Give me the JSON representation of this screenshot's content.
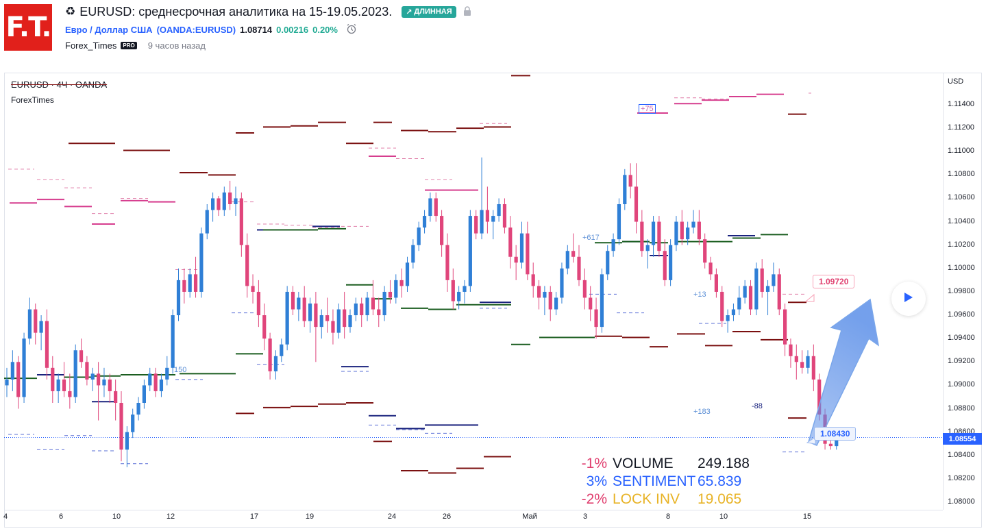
{
  "header": {
    "logo_text": "F.T.",
    "title_icon": "♻",
    "title": "EURUSD: среднесрочная аналитика на 15-19.05.2023.",
    "direction_badge": "ДЛИННАЯ",
    "direction_icon": "↗",
    "symbol_name": "Евро / Доллар США",
    "symbol_ticker": "(OANDA:EURUSD)",
    "price": "1.08714",
    "change": "0.00216",
    "change_pct": "0.20%",
    "author": "Forex_Times",
    "author_badge": "PRO",
    "time_ago": "9 часов назад",
    "colors": {
      "accent": "#2962ff",
      "positive": "#22ab94",
      "logo": "#e1201b"
    }
  },
  "chart": {
    "symbol_label": "EURUSD · 4Ч · OANDA",
    "indicator_label": "ForexTimes",
    "currency": "USD",
    "last_price": "1.08554",
    "target_callout": "1.09720",
    "current_callout": "1.08430",
    "notes": {
      "n1": "+75",
      "n2": "+617",
      "n3": "+13",
      "n4": "+183",
      "n5": "-88",
      "n6": "150"
    },
    "play_icon": "play-icon"
  },
  "stats": [
    {
      "pct": "-1%",
      "name": "VOLUME",
      "value": "249.188",
      "color": "#131722",
      "pct_color": "#e03f6f"
    },
    {
      "pct": "3%",
      "name": "SENTIMENT",
      "value": "65.839",
      "color": "#2962ff",
      "pct_color": "#2962ff"
    },
    {
      "pct": "-2%",
      "name": "LOCK INV",
      "value": "19.065",
      "color": "#e8b326",
      "pct_color": "#e03f6f"
    }
  ],
  "chart_data": {
    "type": "candlestick",
    "y_axis_ticks": [
      "1.11400",
      "1.11200",
      "1.11000",
      "1.10800",
      "1.10600",
      "1.10400",
      "1.10200",
      "1.10000",
      "1.09800",
      "1.09600",
      "1.09400",
      "1.09200",
      "1.09000",
      "1.08800",
      "1.08600",
      "1.08400",
      "1.08200",
      "1.08000"
    ],
    "x_axis_ticks": [
      "4",
      "6",
      "10",
      "12",
      "17",
      "19",
      "24",
      "26",
      "Май",
      "3",
      "8",
      "10",
      "15"
    ],
    "ylim": [
      1.0796,
      1.1166
    ],
    "series": [
      {
        "values": [
          [
            1.09,
            1.0915,
            1.089,
            1.0905
          ],
          [
            1.0905,
            1.093,
            1.0895,
            1.092
          ],
          [
            1.092,
            1.0925,
            1.088,
            1.089
          ],
          [
            1.089,
            1.0945,
            1.0885,
            1.094
          ],
          [
            1.094,
            1.0975,
            1.0935,
            1.0965
          ],
          [
            1.0965,
            1.097,
            1.0935,
            1.0945
          ],
          [
            1.0945,
            1.096,
            1.093,
            1.0955
          ],
          [
            1.0955,
            1.0965,
            1.0905,
            1.0915
          ],
          [
            1.0915,
            1.0925,
            1.0885,
            1.0895
          ],
          [
            1.0895,
            1.091,
            1.0885,
            1.0905
          ],
          [
            1.0905,
            1.092,
            1.089,
            1.0895
          ],
          [
            1.0895,
            1.091,
            1.088,
            1.089
          ],
          [
            1.089,
            1.0935,
            1.0885,
            1.093
          ],
          [
            1.093,
            1.094,
            1.0915,
            1.092
          ],
          [
            1.092,
            1.0925,
            1.09,
            1.0905
          ],
          [
            1.0905,
            1.0915,
            1.0895,
            1.091
          ],
          [
            1.091,
            1.092,
            1.087,
            1.09
          ],
          [
            1.09,
            1.0915,
            1.089,
            1.0905
          ],
          [
            1.0905,
            1.091,
            1.0885,
            1.0895
          ],
          [
            1.0895,
            1.0905,
            1.087,
            1.0885
          ],
          [
            1.0885,
            1.0895,
            1.0835,
            1.0845
          ],
          [
            1.0845,
            1.0865,
            1.083,
            1.086
          ],
          [
            1.086,
            1.088,
            1.0855,
            1.0875
          ],
          [
            1.0875,
            1.089,
            1.087,
            1.0885
          ],
          [
            1.0885,
            1.0905,
            1.088,
            1.09
          ],
          [
            1.09,
            1.0915,
            1.0895,
            1.091
          ],
          [
            1.091,
            1.0915,
            1.089,
            1.0895
          ],
          [
            1.0895,
            1.091,
            1.089,
            1.0905
          ],
          [
            1.0905,
            1.0925,
            1.09,
            1.0915
          ],
          [
            1.0915,
            1.0965,
            1.091,
            1.096
          ],
          [
            1.096,
            1.1,
            1.0955,
            1.099
          ],
          [
            1.099,
            1.1,
            1.097,
            1.098
          ],
          [
            1.098,
            1.1,
            1.0975,
            1.0995
          ],
          [
            1.0995,
            1.101,
            1.0975,
            1.098
          ],
          [
            1.098,
            1.1035,
            1.0975,
            1.103
          ],
          [
            1.103,
            1.1055,
            1.1025,
            1.105
          ],
          [
            1.105,
            1.1065,
            1.104,
            1.106
          ],
          [
            1.106,
            1.1062,
            1.1045,
            1.105
          ],
          [
            1.105,
            1.107,
            1.1045,
            1.1065
          ],
          [
            1.1065,
            1.1075,
            1.105,
            1.1055
          ],
          [
            1.1055,
            1.107,
            1.1045,
            1.106
          ],
          [
            1.106,
            1.1065,
            1.101,
            1.102
          ],
          [
            1.102,
            1.103,
            1.0975,
            1.0985
          ],
          [
            1.0985,
            1.0995,
            1.097,
            1.098
          ],
          [
            1.098,
            1.099,
            1.095,
            1.096
          ],
          [
            1.096,
            1.097,
            1.093,
            1.094
          ],
          [
            1.094,
            1.0945,
            1.0905,
            1.0912
          ],
          [
            1.0912,
            1.093,
            1.0905,
            1.0925
          ],
          [
            1.0925,
            1.094,
            1.092,
            1.0935
          ],
          [
            1.0935,
            1.0985,
            1.093,
            1.098
          ],
          [
            1.098,
            1.0985,
            1.096,
            1.0965
          ],
          [
            1.0965,
            1.098,
            1.0955,
            1.0975
          ],
          [
            1.0975,
            1.0985,
            1.095,
            1.0955
          ],
          [
            1.0955,
            1.0975,
            1.0945,
            1.097
          ],
          [
            1.097,
            1.098,
            1.092,
            1.095
          ],
          [
            1.095,
            1.0965,
            1.094,
            1.096
          ],
          [
            1.096,
            1.0975,
            1.0945,
            1.0955
          ],
          [
            1.0955,
            1.0965,
            1.0935,
            1.0945
          ],
          [
            1.0945,
            1.097,
            1.094,
            1.0965
          ],
          [
            1.0965,
            1.098,
            1.094,
            1.095
          ],
          [
            1.095,
            1.0965,
            1.0945,
            1.096
          ],
          [
            1.096,
            1.0975,
            1.0955,
            1.097
          ],
          [
            1.097,
            1.0975,
            1.095,
            1.096
          ],
          [
            1.096,
            1.098,
            1.0955,
            1.0975
          ],
          [
            1.0975,
            1.099,
            1.096,
            1.0965
          ],
          [
            1.0965,
            1.0975,
            1.095,
            1.096
          ],
          [
            1.096,
            1.0985,
            1.0955,
            1.098
          ],
          [
            1.098,
            1.099,
            1.097,
            1.0975
          ],
          [
            1.0975,
            1.0995,
            1.097,
            1.099
          ],
          [
            1.099,
            1.1,
            1.0975,
            1.0985
          ],
          [
            1.0985,
            1.101,
            1.098,
            1.1005
          ],
          [
            1.1005,
            1.1025,
            1.1,
            1.102
          ],
          [
            1.102,
            1.104,
            1.1015,
            1.1035
          ],
          [
            1.1035,
            1.105,
            1.103,
            1.1045
          ],
          [
            1.1045,
            1.1065,
            1.104,
            1.106
          ],
          [
            1.106,
            1.1065,
            1.104,
            1.1045
          ],
          [
            1.1045,
            1.105,
            1.101,
            1.102
          ],
          [
            1.102,
            1.103,
            1.098,
            1.099
          ],
          [
            1.099,
            1.1,
            1.0965,
            1.0972
          ],
          [
            1.0972,
            1.0985,
            1.0965,
            1.098
          ],
          [
            1.098,
            1.099,
            1.097,
            1.0985
          ],
          [
            1.0985,
            1.105,
            1.098,
            1.1045
          ],
          [
            1.1045,
            1.105,
            1.1025,
            1.103
          ],
          [
            1.103,
            1.1095,
            1.1025,
            1.105
          ],
          [
            1.105,
            1.107,
            1.103,
            1.104
          ],
          [
            1.104,
            1.105,
            1.1025,
            1.1045
          ],
          [
            1.1045,
            1.106,
            1.104,
            1.1055
          ],
          [
            1.1055,
            1.106,
            1.103,
            1.1035
          ],
          [
            1.1035,
            1.1045,
            1.1,
            1.101
          ],
          [
            1.101,
            1.102,
            1.099,
            1.1005
          ],
          [
            1.1005,
            1.104,
            1.1,
            1.103
          ],
          [
            1.103,
            1.104,
            1.099,
            1.0995
          ],
          [
            1.0995,
            1.1005,
            1.0975,
            1.0985
          ],
          [
            1.0985,
            1.099,
            1.0965,
            1.0975
          ],
          [
            1.0975,
            1.0985,
            1.096,
            1.098
          ],
          [
            1.098,
            1.0985,
            1.0955,
            1.0965
          ],
          [
            1.0965,
            1.098,
            1.096,
            1.0975
          ],
          [
            1.0975,
            1.1005,
            1.097,
            1.1
          ],
          [
            1.1,
            1.102,
            1.0995,
            1.1015
          ],
          [
            1.1015,
            1.103,
            1.1005,
            1.101
          ],
          [
            1.101,
            1.102,
            1.0985,
            1.099
          ],
          [
            1.099,
            1.1,
            1.0965,
            1.0975
          ],
          [
            1.0975,
            1.0985,
            1.0955,
            1.0965
          ],
          [
            1.0965,
            1.0975,
            1.094,
            1.095
          ],
          [
            1.095,
            1.1,
            1.0945,
            1.0995
          ],
          [
            1.0995,
            1.102,
            1.099,
            1.1015
          ],
          [
            1.1015,
            1.103,
            1.101,
            1.1025
          ],
          [
            1.1025,
            1.106,
            1.102,
            1.1055
          ],
          [
            1.1055,
            1.1085,
            1.105,
            1.108
          ],
          [
            1.108,
            1.109,
            1.106,
            1.107
          ],
          [
            1.107,
            1.109,
            1.103,
            1.104
          ],
          [
            1.104,
            1.105,
            1.101,
            1.1015
          ],
          [
            1.1015,
            1.1025,
            1.1,
            1.102
          ],
          [
            1.102,
            1.1045,
            1.101,
            1.104
          ],
          [
            1.104,
            1.1045,
            1.101,
            1.1015
          ],
          [
            1.1015,
            1.1025,
            1.0985,
            1.099
          ],
          [
            1.099,
            1.1025,
            1.0985,
            1.102
          ],
          [
            1.102,
            1.1045,
            1.1015,
            1.104
          ],
          [
            1.104,
            1.105,
            1.102,
            1.1025
          ],
          [
            1.1025,
            1.104,
            1.102,
            1.1035
          ],
          [
            1.1035,
            1.105,
            1.103,
            1.104
          ],
          [
            1.104,
            1.105,
            1.102,
            1.1025
          ],
          [
            1.1025,
            1.103,
            1.1,
            1.1005
          ],
          [
            1.1005,
            1.101,
            1.099,
            1.0995
          ],
          [
            1.0995,
            1.1,
            1.0975,
            1.098
          ],
          [
            1.098,
            1.0985,
            1.095,
            1.0955
          ],
          [
            1.0955,
            1.0965,
            1.0945,
            1.096
          ],
          [
            1.096,
            1.097,
            1.0955,
            1.0965
          ],
          [
            1.0965,
            1.0985,
            1.096,
            1.0975
          ],
          [
            1.0975,
            1.099,
            1.097,
            1.0985
          ],
          [
            1.0985,
            1.099,
            1.096,
            1.0965
          ],
          [
            1.0965,
            1.1005,
            1.096,
            1.1
          ],
          [
            1.1,
            1.1008,
            1.0975,
            1.098
          ],
          [
            1.098,
            1.099,
            1.096,
            1.0985
          ],
          [
            1.0985,
            1.1005,
            1.098,
            1.0995
          ],
          [
            1.0995,
            1.1,
            1.096,
            1.0965
          ],
          [
            1.0965,
            1.097,
            1.0925,
            1.0935
          ],
          [
            1.0935,
            1.094,
            1.0915,
            1.0925
          ],
          [
            1.0925,
            1.0935,
            1.0905,
            1.092
          ],
          [
            1.092,
            1.093,
            1.091,
            1.0915
          ],
          [
            1.0915,
            1.093,
            1.091,
            1.0925
          ],
          [
            1.0925,
            1.0935,
            1.0895,
            1.0905
          ],
          [
            1.0905,
            1.091,
            1.087,
            1.0875
          ],
          [
            1.0875,
            1.088,
            1.0845,
            1.085
          ],
          [
            1.085,
            1.086,
            1.0845,
            1.0848
          ],
          [
            1.0848,
            1.0858,
            1.0845,
            1.0855
          ]
        ]
      }
    ]
  }
}
